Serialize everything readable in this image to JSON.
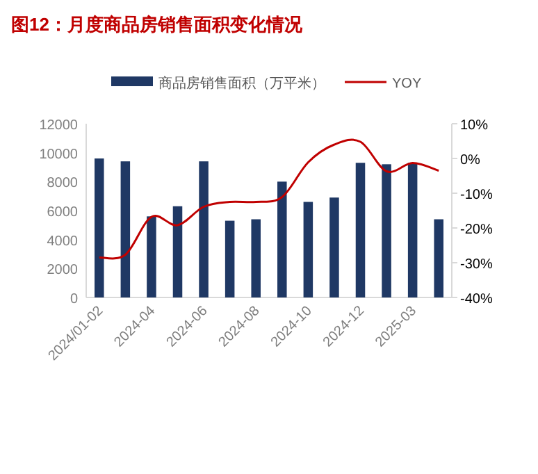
{
  "chart_data": {
    "type": "bar",
    "title": "图12：月度商品房销售面积变化情况",
    "categories": [
      "2024/01-02",
      null,
      "2024-04",
      null,
      "2024-06",
      null,
      "2024-08",
      null,
      "2024-10",
      null,
      "2024-12",
      null,
      "2025-03",
      null
    ],
    "series": [
      {
        "name": "商品房销售面积（万平米）",
        "color": "#1f3864",
        "values": [
          9600,
          9400,
          5600,
          6300,
          9400,
          5300,
          5400,
          8000,
          6600,
          6900,
          9300,
          9200,
          9300,
          5400
        ]
      },
      {
        "name": "YOY",
        "type": "line",
        "axis": "y2",
        "color": "#c00000",
        "values": [
          -28.5,
          -27.7,
          -16.8,
          -19.2,
          -13.9,
          -12.5,
          -12.5,
          -11.1,
          -1.1,
          4.0,
          4.8,
          -3.7,
          -1.3,
          -3.5
        ]
      }
    ],
    "ylim": [
      0,
      12000
    ],
    "yticks": [
      0,
      2000,
      4000,
      6000,
      8000,
      10000,
      12000
    ],
    "y2lim": [
      -40,
      10
    ],
    "y2ticks": [
      {
        "value": -40,
        "label": "-40%"
      },
      {
        "value": -30,
        "label": "-30%"
      },
      {
        "value": -20,
        "label": "-20%"
      },
      {
        "value": -10,
        "label": "-10%"
      },
      {
        "value": 0,
        "label": "0%"
      },
      {
        "value": 10,
        "label": "10%"
      }
    ],
    "legend": "top",
    "grid": false
  }
}
